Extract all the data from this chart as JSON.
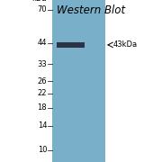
{
  "title": "Western Blot",
  "title_fontsize": 8.5,
  "gel_color": "#7aafc9",
  "band_color": "#222233",
  "background_color": "#ffffff",
  "kda_labels": [
    70,
    44,
    33,
    26,
    22,
    18,
    14,
    10
  ],
  "band_kda": 43,
  "arrow_label": "43kDa",
  "ylabel": "kDa",
  "label_fontsize": 6.0,
  "arrow_fontsize": 6.0,
  "band_alpha": 0.88
}
